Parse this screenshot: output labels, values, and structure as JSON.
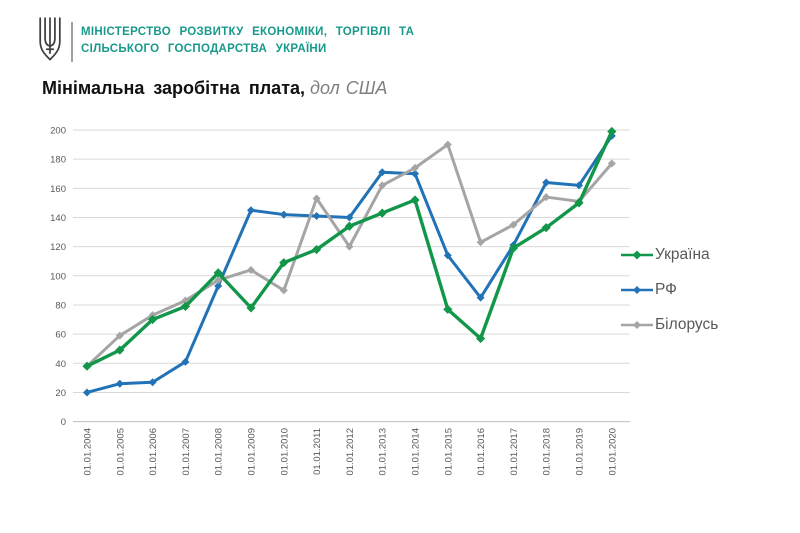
{
  "header": {
    "trident_icon": "ukraine-trident",
    "ministry_line1": "МІНІСТЕРСТВО РОЗВИТКУ ЕКОНОМІКИ, ТОРГІВЛІ ТА",
    "ministry_line2": "СІЛЬСЬКОГО ГОСПОДАРСТВА УКРАЇНИ",
    "brand_color": "#18998b"
  },
  "title": {
    "main": "Мінімальна заробітна плата,",
    "unit": "дол США"
  },
  "chart_data": {
    "type": "line",
    "title": "Мінімальна заробітна плата, дол США",
    "xlabel": "",
    "ylabel": "",
    "ylim": [
      0,
      200
    ],
    "ytick_step": 20,
    "grid": true,
    "legend_position": "right",
    "marker": "diamond",
    "categories": [
      "01.01.2004",
      "01.01.2005",
      "01.01.2006",
      "01.01.2007",
      "01.01.2008",
      "01.01.2009",
      "01.01.2010",
      "01.01.2011",
      "01.01.2012",
      "01.01.2013",
      "01.01.2014",
      "01.01.2015",
      "01.01.2016",
      "01.01.2017",
      "01.01.2018",
      "01.01.2019",
      "01.01.2020"
    ],
    "series": [
      {
        "name": "Україна",
        "color": "#12964a",
        "values": [
          38,
          49,
          70,
          79,
          102,
          78,
          109,
          118,
          134,
          143,
          152,
          77,
          57,
          119,
          133,
          150,
          199
        ]
      },
      {
        "name": "РФ",
        "color": "#2272b8",
        "values": [
          20,
          26,
          27,
          41,
          93,
          145,
          142,
          141,
          140,
          171,
          170,
          114,
          85,
          121,
          164,
          162,
          196
        ]
      },
      {
        "name": "Білорусь",
        "color": "#a5a5a5",
        "values": [
          38,
          59,
          73,
          83,
          97,
          104,
          90,
          153,
          120,
          162,
          174,
          190,
          123,
          135,
          154,
          151,
          177
        ]
      }
    ],
    "colors": {
      "grid": "#d9d9d9",
      "axis": "#bfbfbf",
      "tick_label": "#595959"
    }
  }
}
